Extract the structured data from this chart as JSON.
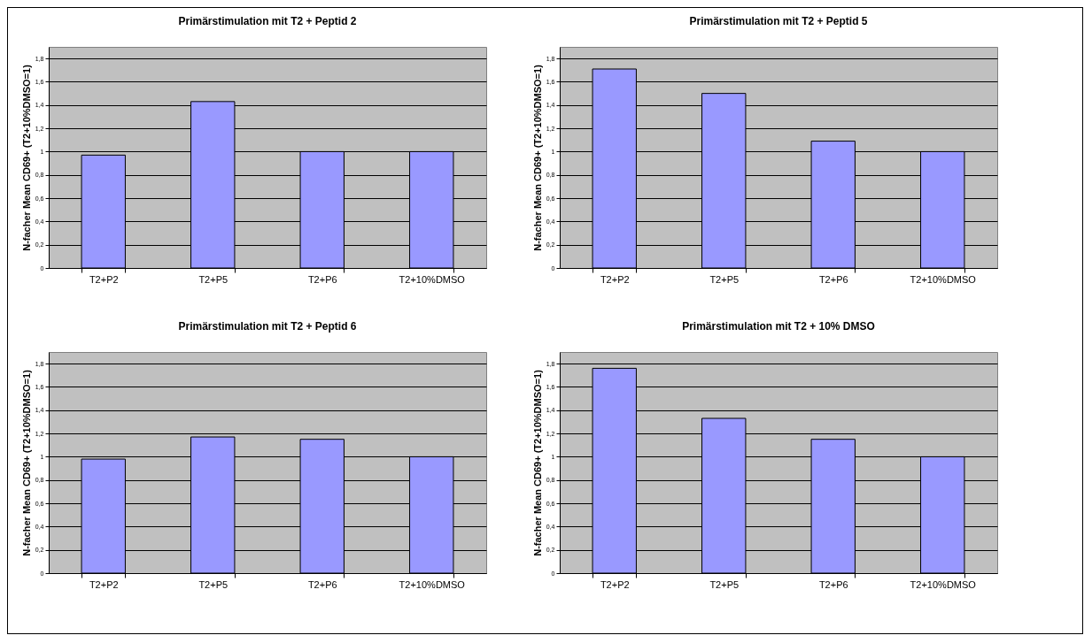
{
  "chart_data": [
    {
      "type": "bar",
      "title": "Primärstimulation mit T2 + Peptid 2",
      "ylabel": "N-facher Mean CD69+  (T2+10%DMSO=1)",
      "categories": [
        "T2+P2",
        "T2+P5",
        "T2+P6",
        "T2+10%DMSO"
      ],
      "values": [
        0.97,
        1.43,
        1.0,
        1.0
      ],
      "color": "#9999ff",
      "ylim": [
        0,
        1.9
      ],
      "yticks": [
        {
          "value": 0,
          "label": "0"
        },
        {
          "value": 0.2,
          "label": "0,2"
        },
        {
          "value": 0.4,
          "label": "0,4"
        },
        {
          "value": 0.6,
          "label": "0,6"
        },
        {
          "value": 0.8,
          "label": "0,8"
        },
        {
          "value": 1,
          "label": "1"
        },
        {
          "value": 1.2,
          "label": "1,2"
        },
        {
          "value": 1.4,
          "label": "1,4"
        },
        {
          "value": 1.6,
          "label": "1,6"
        },
        {
          "value": 1.8,
          "label": "1,8"
        }
      ],
      "grid": "y"
    },
    {
      "type": "bar",
      "title": "Primärstimulation mit T2 + Peptid 5",
      "ylabel": "N-facher Mean CD69+  (T2+10%DMSO=1)",
      "categories": [
        "T2+P2",
        "T2+P5",
        "T2+P6",
        "T2+10%DMSO"
      ],
      "values": [
        1.71,
        1.5,
        1.09,
        1.0
      ],
      "color": "#9999ff",
      "ylim": [
        0,
        1.9
      ],
      "yticks": [
        {
          "value": 0,
          "label": "0"
        },
        {
          "value": 0.2,
          "label": "0,2"
        },
        {
          "value": 0.4,
          "label": "0,4"
        },
        {
          "value": 0.6,
          "label": "0,6"
        },
        {
          "value": 0.8,
          "label": "0,8"
        },
        {
          "value": 1,
          "label": "1"
        },
        {
          "value": 1.2,
          "label": "1,2"
        },
        {
          "value": 1.4,
          "label": "1,4"
        },
        {
          "value": 1.6,
          "label": "1,6"
        },
        {
          "value": 1.8,
          "label": "1,8"
        }
      ],
      "grid": "y"
    },
    {
      "type": "bar",
      "title": "Primärstimulation mit T2 + Peptid 6",
      "ylabel": "N-facher Mean CD69+  (T2+10%DMSO=1)",
      "categories": [
        "T2+P2",
        "T2+P5",
        "T2+P6",
        "T2+10%DMSO"
      ],
      "values": [
        0.98,
        1.17,
        1.15,
        1.0
      ],
      "color": "#9999ff",
      "ylim": [
        0,
        1.9
      ],
      "yticks": [
        {
          "value": 0,
          "label": "0"
        },
        {
          "value": 0.2,
          "label": "0,2"
        },
        {
          "value": 0.4,
          "label": "0,4"
        },
        {
          "value": 0.6,
          "label": "0,6"
        },
        {
          "value": 0.8,
          "label": "0,8"
        },
        {
          "value": 1,
          "label": "1"
        },
        {
          "value": 1.2,
          "label": "1,2"
        },
        {
          "value": 1.4,
          "label": "1,4"
        },
        {
          "value": 1.6,
          "label": "1,6"
        },
        {
          "value": 1.8,
          "label": "1,8"
        }
      ],
      "grid": "y"
    },
    {
      "type": "bar",
      "title": "Primärstimulation mit T2 + 10% DMSO",
      "ylabel": "N-facher Mean CD69+  (T2+10%DMSO=1)",
      "categories": [
        "T2+P2",
        "T2+P5",
        "T2+P6",
        "T2+10%DMSO"
      ],
      "values": [
        1.76,
        1.33,
        1.15,
        1.0
      ],
      "color": "#9999ff",
      "ylim": [
        0,
        1.9
      ],
      "yticks": [
        {
          "value": 0,
          "label": "0"
        },
        {
          "value": 0.2,
          "label": "0,2"
        },
        {
          "value": 0.4,
          "label": "0,4"
        },
        {
          "value": 0.6,
          "label": "0,6"
        },
        {
          "value": 0.8,
          "label": "0,8"
        },
        {
          "value": 1,
          "label": "1"
        },
        {
          "value": 1.2,
          "label": "1,2"
        },
        {
          "value": 1.4,
          "label": "1,4"
        },
        {
          "value": 1.6,
          "label": "1,6"
        },
        {
          "value": 1.8,
          "label": "1,8"
        }
      ],
      "grid": "y"
    }
  ]
}
